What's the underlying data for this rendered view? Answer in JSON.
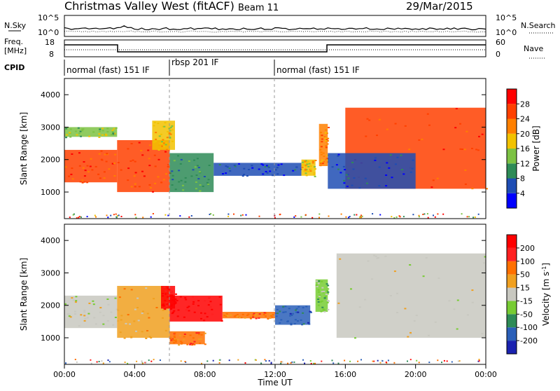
{
  "header": {
    "station": "Christmas Valley West (fitACF)",
    "beam": "Beam 11",
    "date": "29/Mar/2015"
  },
  "noise_panel": {
    "left_label": "N.Sky",
    "left_ticks": [
      "10^5",
      "10^0"
    ],
    "right_label": "N.Search",
    "right_ticks": [
      "10^5",
      "10^0"
    ]
  },
  "freq_panel": {
    "left_label_line1": "Freq.",
    "left_label_line2": "[MHz]",
    "left_ticks": [
      "18",
      "8"
    ],
    "right_label": "Nave",
    "right_ticks": [
      "60",
      "0"
    ]
  },
  "cpid": {
    "label": "CPID",
    "segments": [
      {
        "label": "normal (fast) 151 IF",
        "start_hour": 0,
        "end_hour": 6
      },
      {
        "label": "rbsp 201 IF",
        "start_hour": 6,
        "end_hour": 12
      },
      {
        "label": "normal (fast) 151 IF",
        "start_hour": 12,
        "end_hour": 24
      }
    ]
  },
  "x_axis": {
    "label": "Time UT",
    "ticks": [
      "00:00",
      "04:00",
      "08:00",
      "12:00",
      "16:00",
      "20:00",
      "00:00"
    ],
    "range_hours": [
      0,
      24
    ]
  },
  "power_panel": {
    "ylabel": "Slant Range [km]",
    "yticks": [
      "1000",
      "2000",
      "3000",
      "4000"
    ],
    "colorbar_label": "Power [dB]",
    "colorbar_ticks": [
      "4",
      "8",
      "12",
      "16",
      "20",
      "24",
      "28"
    ]
  },
  "velocity_panel": {
    "ylabel": "Slant Range [km]",
    "yticks": [
      "1000",
      "2000",
      "3000",
      "4000"
    ],
    "colorbar_label": "Velocity [m s",
    "colorbar_label_sup": "-1",
    "colorbar_label_end": "]",
    "colorbar_ticks": [
      "200",
      "100",
      "50",
      "15",
      "-15",
      "-50",
      "-100",
      "-200"
    ]
  },
  "chart_data": {
    "type": "heatmap",
    "x_range_hours": [
      0,
      24
    ],
    "y_range_km": [
      180,
      4500
    ],
    "dashed_marker_hours": [
      6,
      12
    ],
    "power_colorscale": [
      "#0000ff",
      "#1e4db4",
      "#2e8b57",
      "#7cc243",
      "#f2c200",
      "#ff8000",
      "#ff4000",
      "#ff0000"
    ],
    "velocity_colorscale": [
      "#1a22b0",
      "#2a5fb8",
      "#2e8b57",
      "#77cc33",
      "#c8c8c0",
      "#f0a020",
      "#ff7000",
      "#ff2020",
      "#ff0000"
    ],
    "power_regions": [
      {
        "t0": 0.0,
        "t1": 3.0,
        "r0": 1300,
        "r1": 2300,
        "level": 6
      },
      {
        "t0": 0.0,
        "t1": 3.0,
        "r0": 2700,
        "r1": 3000,
        "level": 3
      },
      {
        "t0": 3.0,
        "t1": 6.0,
        "r0": 1000,
        "r1": 2600,
        "level": 6
      },
      {
        "t0": 5.0,
        "t1": 6.3,
        "r0": 2300,
        "r1": 3200,
        "level": 4
      },
      {
        "t0": 6.0,
        "t1": 8.5,
        "r0": 1000,
        "r1": 2200,
        "level": 2
      },
      {
        "t0": 8.5,
        "t1": 13.5,
        "r0": 1500,
        "r1": 1900,
        "level": 1
      },
      {
        "t0": 13.5,
        "t1": 14.3,
        "r0": 1500,
        "r1": 2000,
        "level": 4
      },
      {
        "t0": 14.5,
        "t1": 15.0,
        "r0": 1800,
        "r1": 3100,
        "level": 5
      },
      {
        "t0": 16.0,
        "t1": 24.0,
        "r0": 1100,
        "r1": 3600,
        "level": 6
      },
      {
        "t0": 15.0,
        "t1": 20.0,
        "r0": 1100,
        "r1": 2200,
        "level": 1
      }
    ],
    "velocity_regions": [
      {
        "t0": 0.0,
        "t1": 3.0,
        "r0": 1300,
        "r1": 2300,
        "level": 4
      },
      {
        "t0": 3.0,
        "t1": 6.0,
        "r0": 1000,
        "r1": 2600,
        "level": 5
      },
      {
        "t0": 5.5,
        "t1": 6.3,
        "r0": 1900,
        "r1": 2600,
        "level": 8
      },
      {
        "t0": 6.0,
        "t1": 9.0,
        "r0": 1500,
        "r1": 2300,
        "level": 8
      },
      {
        "t0": 6.0,
        "t1": 8.0,
        "r0": 800,
        "r1": 1200,
        "level": 6
      },
      {
        "t0": 9.0,
        "t1": 12.0,
        "r0": 1600,
        "r1": 1800,
        "level": 6
      },
      {
        "t0": 12.0,
        "t1": 14.0,
        "r0": 1400,
        "r1": 2000,
        "level": 1
      },
      {
        "t0": 14.3,
        "t1": 15.0,
        "r0": 1800,
        "r1": 2800,
        "level": 3
      },
      {
        "t0": 15.5,
        "t1": 24.0,
        "r0": 1000,
        "r1": 3600,
        "level": 4
      }
    ]
  }
}
